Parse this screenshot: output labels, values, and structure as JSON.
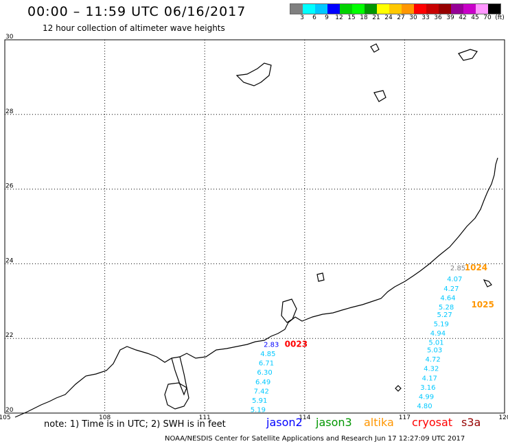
{
  "title": "00:00 – 11:59 UTC 06/16/2017",
  "subtitle": "12 hour collection of altimeter wave heights",
  "colorbar": {
    "colors": [
      "#808080",
      "#00ffff",
      "#00c8ff",
      "#0000ff",
      "#00d200",
      "#00ff00",
      "#009600",
      "#ffff00",
      "#ffc800",
      "#ff9600",
      "#ff0000",
      "#c80000",
      "#960000",
      "#960096",
      "#c800c8",
      "#ff96ff",
      "#000000"
    ],
    "labels": [
      "3",
      "6",
      "9",
      "12",
      "15",
      "18",
      "21",
      "24",
      "27",
      "30",
      "33",
      "36",
      "39",
      "42",
      "45",
      "70",
      "(ft)"
    ]
  },
  "map": {
    "lon_range": [
      105,
      120
    ],
    "lat_range": [
      20,
      30
    ],
    "lon_ticks": [
      "105",
      "108",
      "111",
      "114",
      "117",
      "120"
    ],
    "lat_ticks": [
      "30",
      "28",
      "26",
      "24",
      "22",
      "20"
    ],
    "grid": true
  },
  "tracks": [
    {
      "label": "1024",
      "label_color": "#ff9600",
      "points": [
        {
          "lon": 118.6,
          "lat": 23.9,
          "value": "2.85",
          "color": "#808080"
        },
        {
          "lon": 118.5,
          "lat": 23.6,
          "value": "4.07",
          "color": "#00c8ff"
        },
        {
          "lon": 118.4,
          "lat": 23.35,
          "value": "4.27",
          "color": "#00c8ff"
        },
        {
          "lon": 118.3,
          "lat": 23.1,
          "value": "4.64",
          "color": "#00c8ff"
        },
        {
          "lon": 118.25,
          "lat": 22.85,
          "value": "5.28",
          "color": "#00c8ff"
        },
        {
          "lon": 118.2,
          "lat": 22.65,
          "value": "5.27",
          "color": "#00c8ff"
        },
        {
          "lon": 118.1,
          "lat": 22.4,
          "value": "5.19",
          "color": "#00c8ff"
        },
        {
          "lon": 118.0,
          "lat": 22.15,
          "value": "4.94",
          "color": "#00c8ff"
        },
        {
          "lon": 117.95,
          "lat": 21.9,
          "value": "5.01",
          "color": "#00c8ff"
        },
        {
          "lon": 117.9,
          "lat": 21.7,
          "value": "5.03",
          "color": "#00c8ff"
        },
        {
          "lon": 117.85,
          "lat": 21.45,
          "value": "4.72",
          "color": "#00c8ff"
        },
        {
          "lon": 117.8,
          "lat": 21.2,
          "value": "4.32",
          "color": "#00c8ff"
        },
        {
          "lon": 117.75,
          "lat": 20.95,
          "value": "4.17",
          "color": "#00c8ff"
        },
        {
          "lon": 117.7,
          "lat": 20.7,
          "value": "3.16",
          "color": "#00c8ff"
        },
        {
          "lon": 117.65,
          "lat": 20.45,
          "value": "4.99",
          "color": "#00c8ff"
        },
        {
          "lon": 117.6,
          "lat": 20.2,
          "value": "4.80",
          "color": "#00c8ff"
        }
      ]
    },
    {
      "label": "1025",
      "label_color": "#ff9600",
      "points": []
    },
    {
      "label": "0023",
      "label_color": "#ff0000",
      "points": [
        {
          "lon": 113.0,
          "lat": 21.85,
          "value": "2.83",
          "color": "#0000ff"
        },
        {
          "lon": 112.9,
          "lat": 21.6,
          "value": "4.85",
          "color": "#00c8ff"
        },
        {
          "lon": 112.85,
          "lat": 21.35,
          "value": "6.71",
          "color": "#00c8ff"
        },
        {
          "lon": 112.8,
          "lat": 21.1,
          "value": "6.30",
          "color": "#00c8ff"
        },
        {
          "lon": 112.75,
          "lat": 20.85,
          "value": "6.49",
          "color": "#00c8ff"
        },
        {
          "lon": 112.7,
          "lat": 20.6,
          "value": "7.42",
          "color": "#00c8ff"
        },
        {
          "lon": 112.65,
          "lat": 20.35,
          "value": "5.91",
          "color": "#00c8ff"
        },
        {
          "lon": 112.6,
          "lat": 20.1,
          "value": "5.19",
          "color": "#00c8ff"
        }
      ]
    }
  ],
  "note": "note: 1) Time is in UTC; 2) SWH is in feet",
  "satellites": [
    {
      "name": "jason2",
      "color": "#0000ff"
    },
    {
      "name": "jason3",
      "color": "#009600"
    },
    {
      "name": "altika",
      "color": "#ff9600"
    },
    {
      "name": "cryosat",
      "color": "#ff0000"
    },
    {
      "name": "s3a",
      "color": "#960000"
    }
  ],
  "credit": "NOAA/NESDIS Center for Satellite Applications and Research   Jun 17 12:27:09 UTC 2017"
}
